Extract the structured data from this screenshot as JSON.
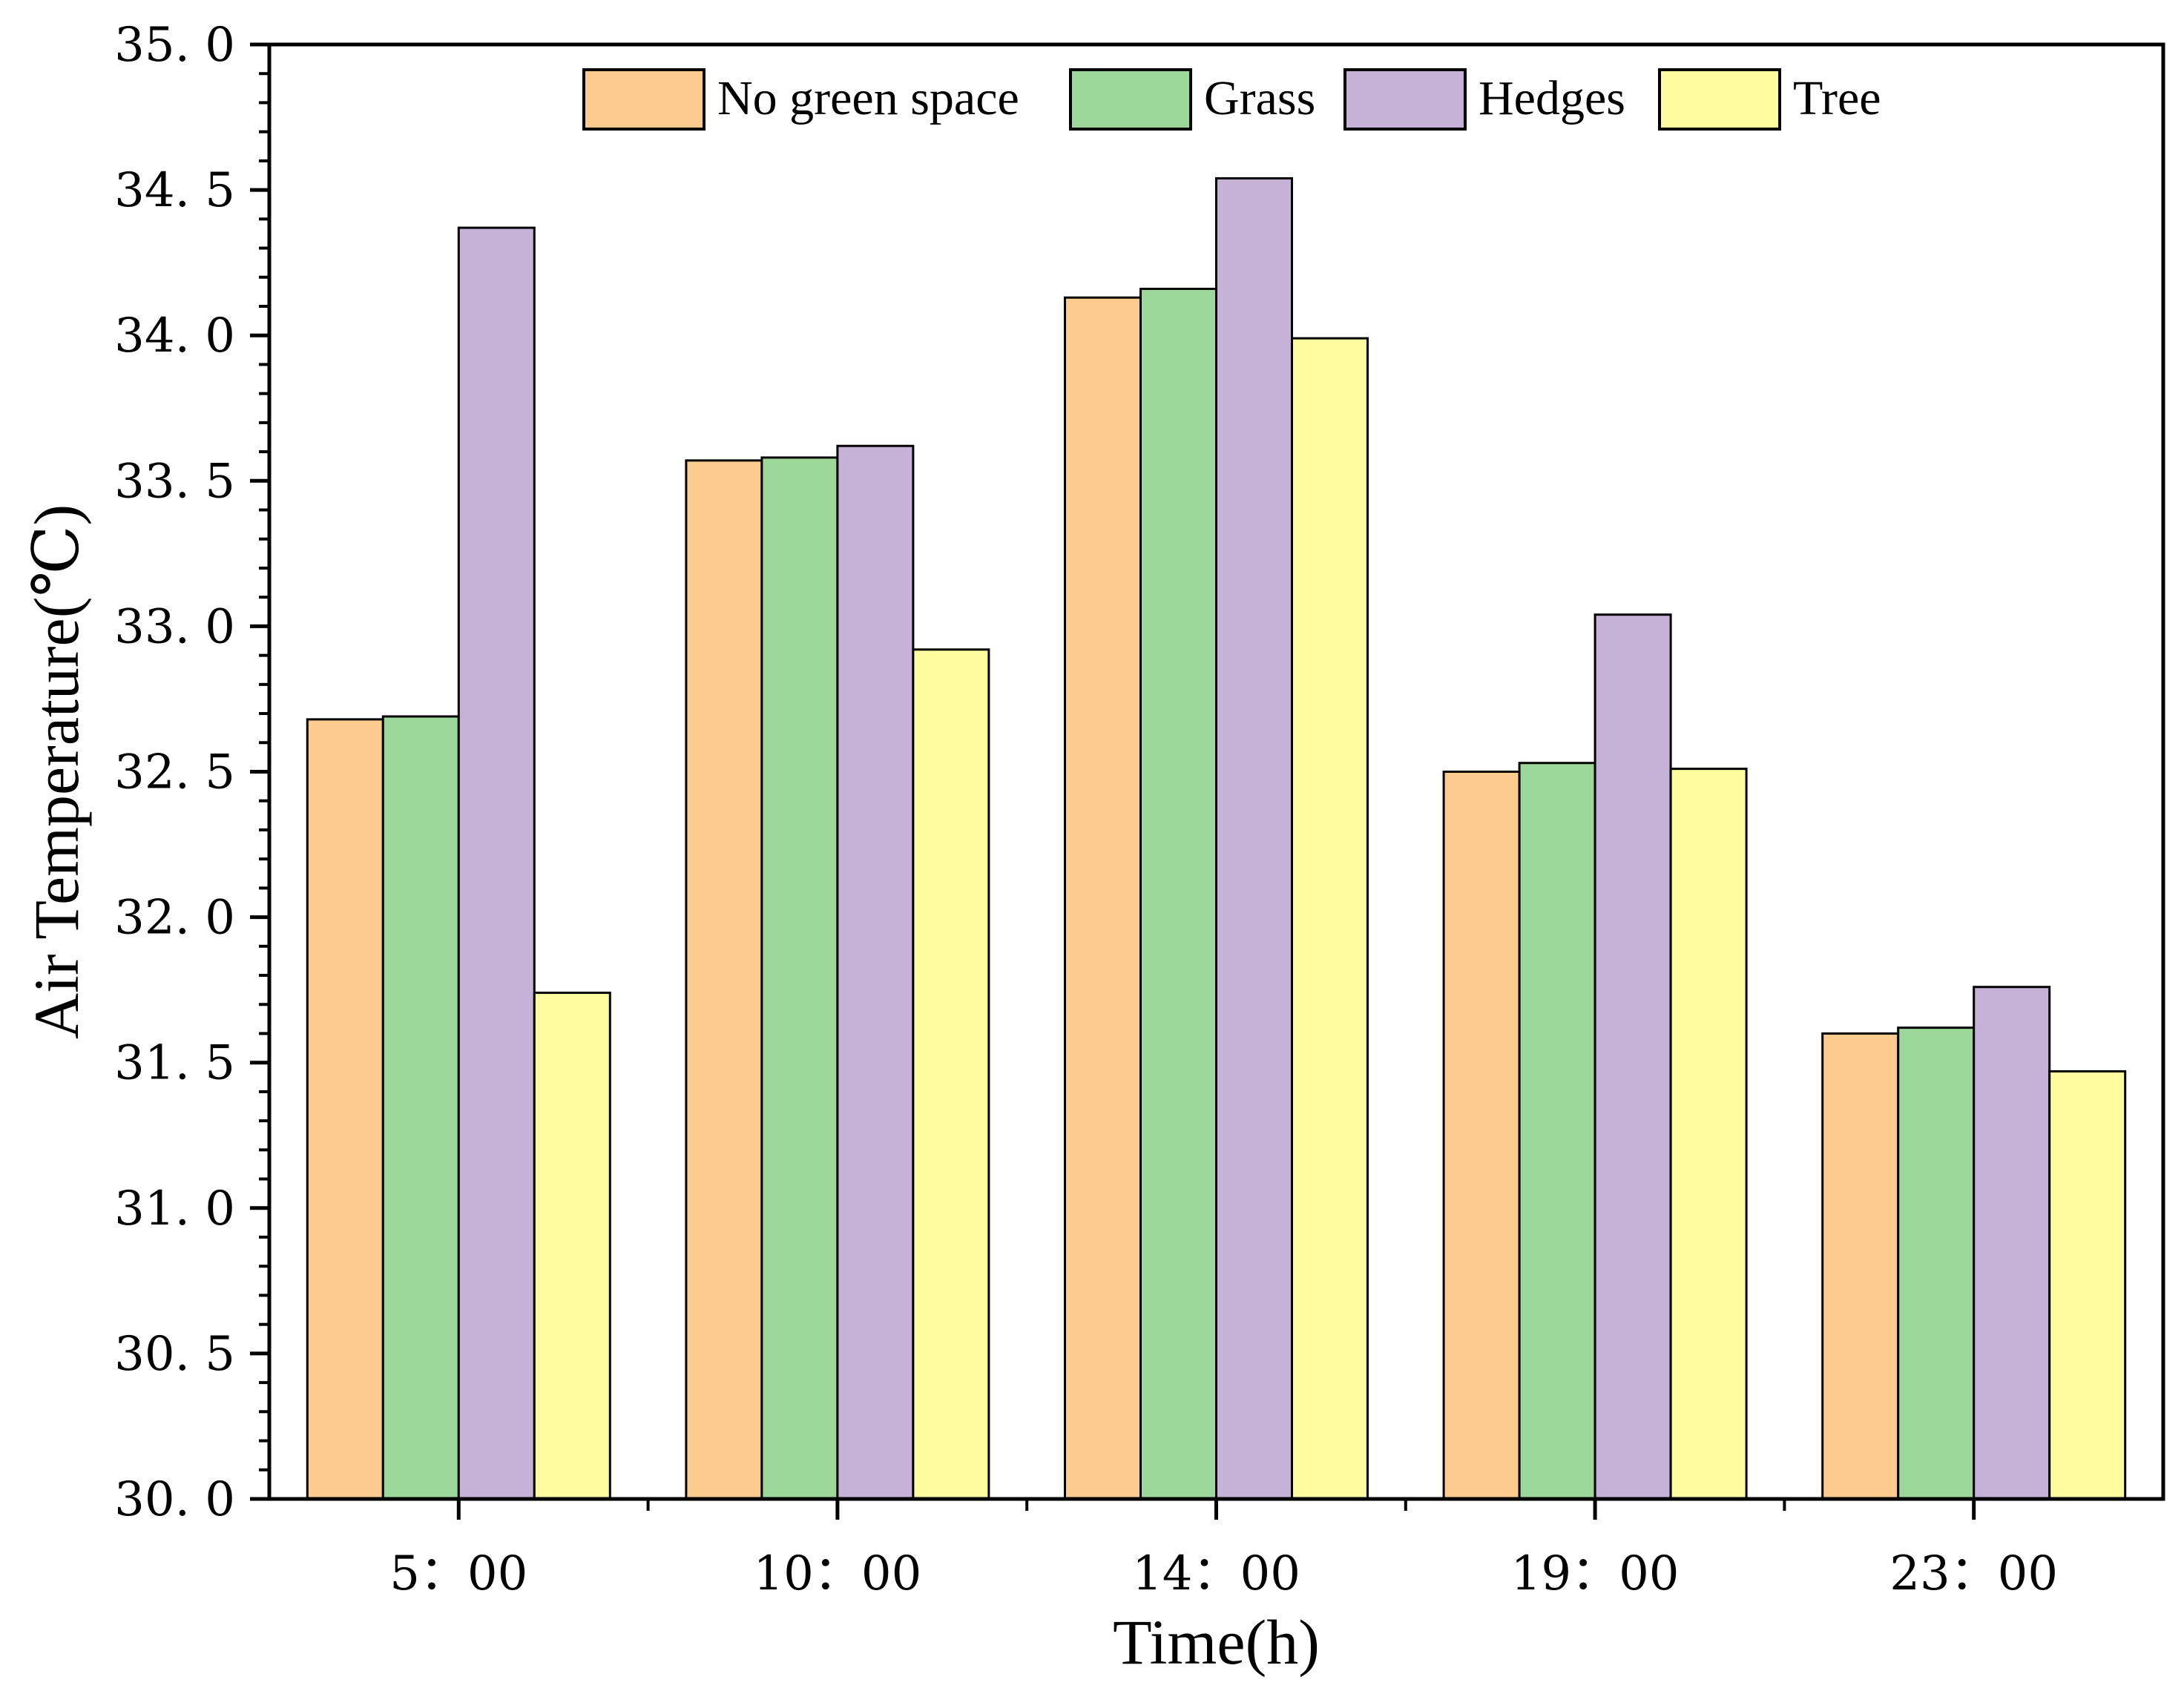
{
  "chart_data": {
    "type": "bar",
    "title": "",
    "xlabel": "Time(h)",
    "ylabel": "Air Temperature(℃)",
    "ylim": [
      30.0,
      35.0
    ],
    "yticks": [
      "30. 0",
      "30. 5",
      "31. 0",
      "31. 5",
      "32. 0",
      "32. 5",
      "33. 0",
      "33. 5",
      "34. 0",
      "34. 5",
      "35. 0"
    ],
    "categories": [
      "5：00",
      "10：00",
      "14：00",
      "19：00",
      "23：00"
    ],
    "legend_position": "top-center",
    "grid": false,
    "series": [
      {
        "name": "No green space",
        "color": "#FDCB8E",
        "values": [
          32.68,
          33.57,
          34.13,
          32.5,
          31.6
        ]
      },
      {
        "name": "Grass",
        "color": "#9DD89B",
        "values": [
          32.69,
          33.58,
          34.16,
          32.53,
          31.62
        ]
      },
      {
        "name": "Hedges",
        "color": "#C5B2D6",
        "values": [
          34.37,
          33.62,
          34.54,
          33.04,
          31.76
        ]
      },
      {
        "name": "Tree",
        "color": "#FEFC9F",
        "values": [
          31.74,
          32.92,
          33.99,
          32.51,
          31.47
        ]
      }
    ]
  }
}
